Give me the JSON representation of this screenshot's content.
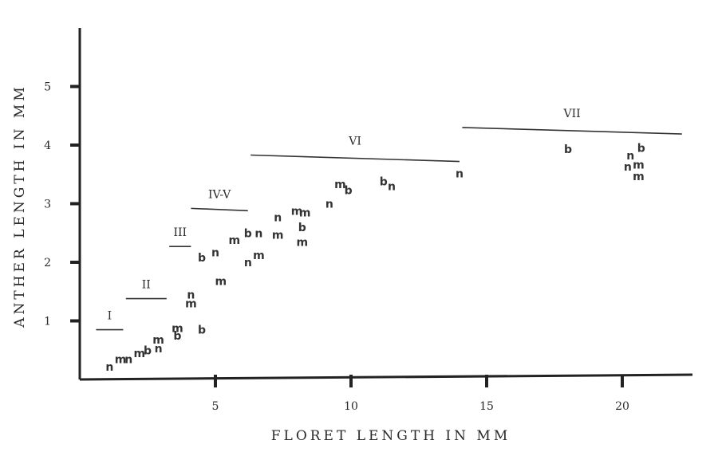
{
  "chart_data": {
    "type": "scatter",
    "xlabel": "FLORET LENGTH IN MM",
    "ylabel": "ANTHER LENGTH IN MM",
    "xlim": [
      0,
      22.5
    ],
    "ylim": [
      0,
      6
    ],
    "x_ticks": [
      5,
      10,
      15,
      20
    ],
    "y_ticks": [
      1,
      2,
      3,
      4,
      5
    ],
    "grid": false,
    "stages": [
      {
        "label": "I",
        "x_start": 0.6,
        "x_end": 1.6,
        "y_start": 0.85,
        "y_end": 0.85
      },
      {
        "label": "II",
        "x_start": 1.7,
        "x_end": 3.2,
        "y_start": 1.38,
        "y_end": 1.38
      },
      {
        "label": "III",
        "x_start": 3.3,
        "x_end": 4.1,
        "y_start": 2.27,
        "y_end": 2.27
      },
      {
        "label": "IV-V",
        "x_start": 4.1,
        "x_end": 6.2,
        "y_start": 2.92,
        "y_end": 2.88
      },
      {
        "label": "VI",
        "x_start": 6.3,
        "x_end": 14.0,
        "y_start": 3.83,
        "y_end": 3.72
      },
      {
        "label": "VII",
        "x_start": 14.1,
        "x_end": 22.2,
        "y_start": 4.3,
        "y_end": 4.19
      }
    ],
    "points": [
      {
        "label": "n",
        "x": 1.1,
        "y": 0.22
      },
      {
        "label": "m",
        "x": 1.5,
        "y": 0.35
      },
      {
        "label": "n",
        "x": 1.8,
        "y": 0.35
      },
      {
        "label": "m",
        "x": 2.2,
        "y": 0.45
      },
      {
        "label": "b",
        "x": 2.5,
        "y": 0.5
      },
      {
        "label": "m",
        "x": 2.9,
        "y": 0.68
      },
      {
        "label": "n",
        "x": 2.9,
        "y": 0.53
      },
      {
        "label": "m",
        "x": 3.6,
        "y": 0.88
      },
      {
        "label": "b",
        "x": 3.6,
        "y": 0.75
      },
      {
        "label": "b",
        "x": 4.5,
        "y": 0.85
      },
      {
        "label": "n",
        "x": 4.1,
        "y": 1.45
      },
      {
        "label": "m",
        "x": 4.1,
        "y": 1.3
      },
      {
        "label": "m",
        "x": 5.2,
        "y": 1.68
      },
      {
        "label": "b",
        "x": 4.5,
        "y": 2.08
      },
      {
        "label": "n",
        "x": 5.0,
        "y": 2.17
      },
      {
        "label": "m",
        "x": 5.7,
        "y": 2.38
      },
      {
        "label": "b",
        "x": 6.2,
        "y": 2.5
      },
      {
        "label": "n",
        "x": 6.6,
        "y": 2.5
      },
      {
        "label": "n",
        "x": 6.2,
        "y": 2.0
      },
      {
        "label": "m",
        "x": 6.6,
        "y": 2.12
      },
      {
        "label": "m",
        "x": 7.3,
        "y": 2.47
      },
      {
        "label": "n",
        "x": 7.3,
        "y": 2.77
      },
      {
        "label": "m",
        "x": 8.0,
        "y": 2.88
      },
      {
        "label": "m",
        "x": 8.3,
        "y": 2.85
      },
      {
        "label": "b",
        "x": 8.2,
        "y": 2.6
      },
      {
        "label": "m",
        "x": 8.2,
        "y": 2.35
      },
      {
        "label": "n",
        "x": 9.2,
        "y": 3.0
      },
      {
        "label": "m",
        "x": 9.6,
        "y": 3.33
      },
      {
        "label": "b",
        "x": 9.9,
        "y": 3.23
      },
      {
        "label": "b",
        "x": 11.2,
        "y": 3.38
      },
      {
        "label": "n",
        "x": 11.5,
        "y": 3.3
      },
      {
        "label": "n",
        "x": 14.0,
        "y": 3.52
      },
      {
        "label": "b",
        "x": 18.0,
        "y": 3.93
      },
      {
        "label": "b",
        "x": 20.7,
        "y": 3.95
      },
      {
        "label": "n",
        "x": 20.3,
        "y": 3.82
      },
      {
        "label": "m",
        "x": 20.6,
        "y": 3.67
      },
      {
        "label": "n",
        "x": 20.2,
        "y": 3.63
      },
      {
        "label": "m",
        "x": 20.6,
        "y": 3.47
      }
    ]
  }
}
